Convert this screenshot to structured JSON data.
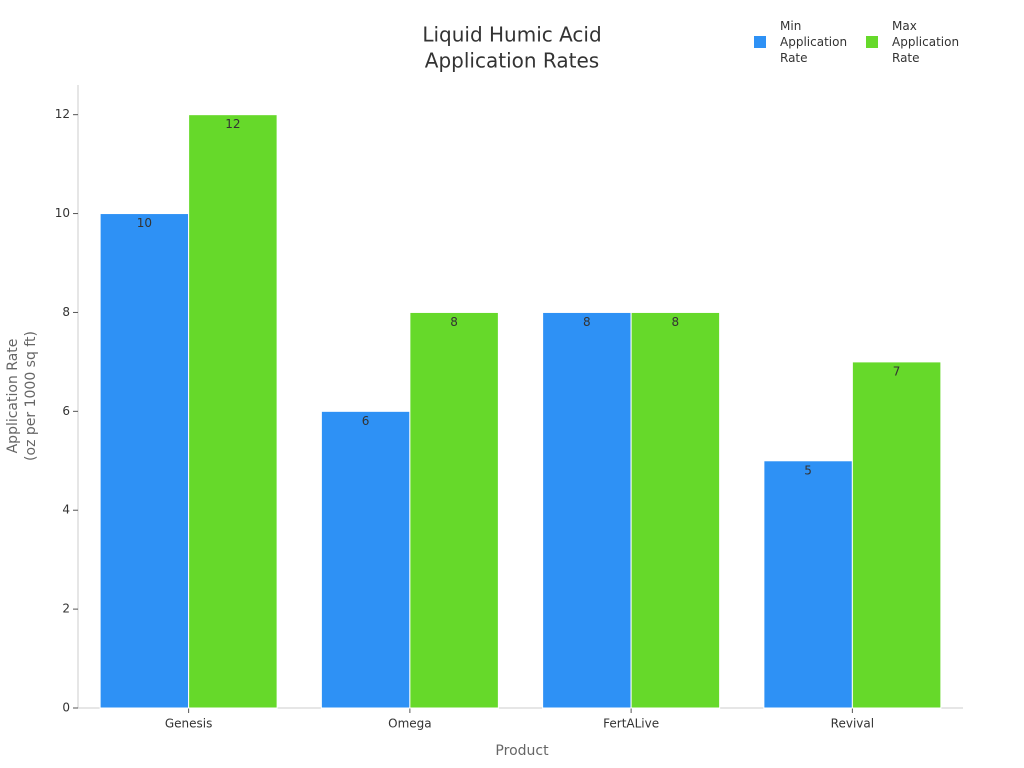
{
  "chart_data": {
    "type": "bar",
    "title": [
      "Liquid Humic Acid",
      "Application Rates"
    ],
    "x_label": "Product",
    "y_label": [
      "Application Rate",
      "(oz per 1000 sq ft)"
    ],
    "categories": [
      "Genesis",
      "Omega",
      "FertALive",
      "Revival"
    ],
    "series": [
      {
        "name": "Min Application Rate",
        "color": "#2e91f5",
        "values": [
          10,
          6,
          8,
          5
        ]
      },
      {
        "name": "Max Application Rate",
        "color": "#66d92a",
        "values": [
          12,
          8,
          8,
          7
        ]
      }
    ],
    "ylim": [
      0,
      12.6
    ],
    "yticks": [
      0,
      2,
      4,
      6,
      8,
      10,
      12
    ],
    "grid": false,
    "legend": "top-right"
  }
}
